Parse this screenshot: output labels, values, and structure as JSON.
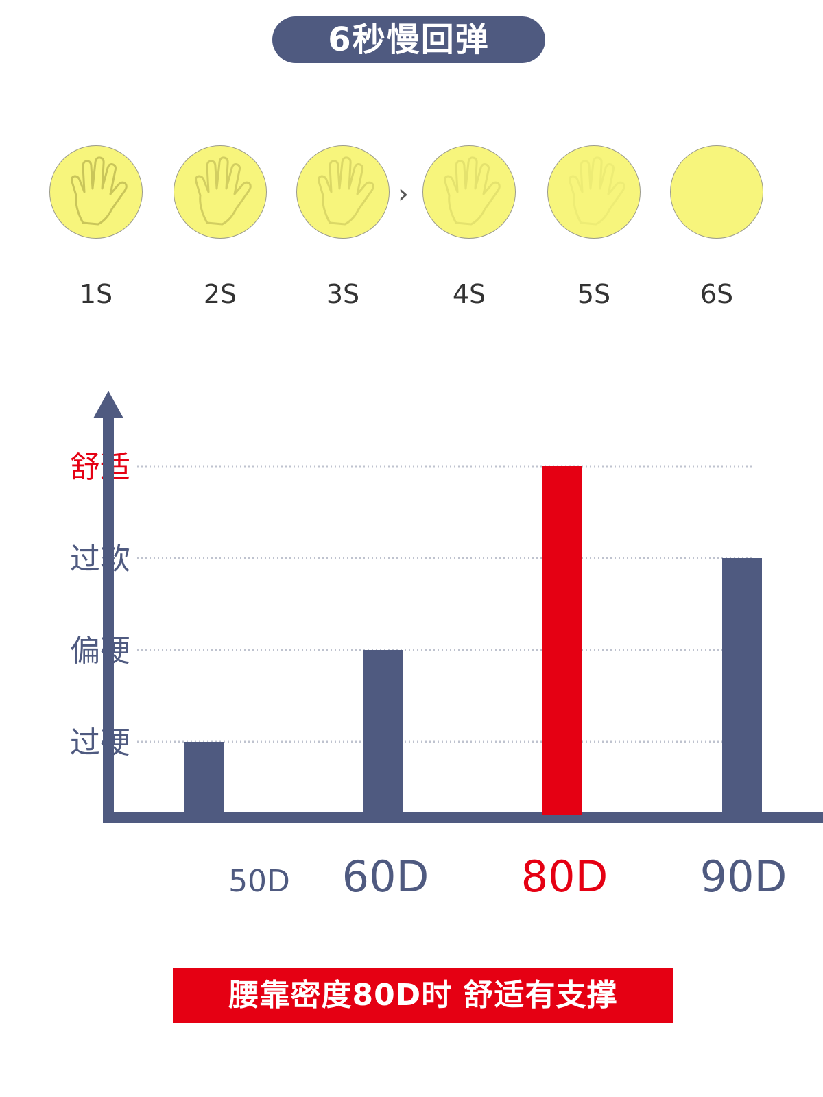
{
  "header": {
    "title": "6秒慢回弹"
  },
  "steps": [
    {
      "label": "1S",
      "handOpacity": 1.0
    },
    {
      "label": "2S",
      "handOpacity": 0.8
    },
    {
      "label": "3S",
      "handOpacity": 0.6
    },
    {
      "label": "4S",
      "handOpacity": 0.4
    },
    {
      "label": "5S",
      "handOpacity": 0.2
    },
    {
      "label": "6S",
      "handOpacity": 0.0
    }
  ],
  "colors": {
    "navy": "#4f5a80",
    "red": "#e50013",
    "yellow": "#f7f57c",
    "grid": "#bfc3cf",
    "axis": "#4f5a80"
  },
  "chart_data": {
    "type": "bar",
    "categories": [
      "50D",
      "60D",
      "80D",
      "90D"
    ],
    "values": [
      1,
      2,
      4,
      3
    ],
    "yLevels": [
      "过硬",
      "偏硬",
      "过软",
      "舒适"
    ],
    "ylim": [
      0,
      4
    ],
    "highlight": "80D",
    "grid": "dotted"
  },
  "banner": {
    "text": "腰靠密度80D时 舒适有支撑"
  }
}
